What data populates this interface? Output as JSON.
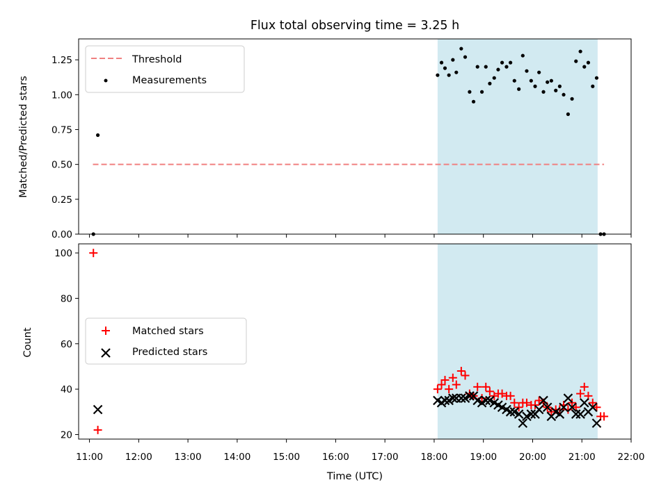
{
  "chart_data": {
    "type": "scatter",
    "title": "Flux total observing time = 3.25 h",
    "xlabel": "Time (UTC)",
    "x_tick_labels": [
      "11:00",
      "12:00",
      "13:00",
      "14:00",
      "15:00",
      "16:00",
      "17:00",
      "18:00",
      "19:00",
      "20:00",
      "21:00",
      "22:00"
    ],
    "xlim_hours": [
      10.78,
      22.0
    ],
    "shaded_interval_hours": [
      18.07,
      21.32
    ],
    "shade_color": "#add8e6",
    "top": {
      "ylabel": "Matched/Predicted stars",
      "ylim": [
        0,
        1.4
      ],
      "y_tick_labels": [
        "0.00",
        "0.25",
        "0.50",
        "0.75",
        "1.00",
        "1.25"
      ],
      "legend": [
        "Threshold",
        "Measurements"
      ],
      "threshold": {
        "name": "Threshold",
        "value": 0.5,
        "x_range": [
          11.07,
          21.45
        ],
        "color": "#f08080"
      },
      "measurements": {
        "name": "Measurements",
        "color": "#000000",
        "x": [
          11.08,
          11.17,
          18.07,
          18.15,
          18.22,
          18.3,
          18.38,
          18.45,
          18.55,
          18.63,
          18.72,
          18.8,
          18.88,
          18.97,
          19.05,
          19.13,
          19.22,
          19.3,
          19.38,
          19.47,
          19.55,
          19.63,
          19.72,
          19.8,
          19.88,
          19.97,
          20.05,
          20.13,
          20.22,
          20.3,
          20.38,
          20.47,
          20.55,
          20.63,
          20.72,
          20.8,
          20.88,
          20.97,
          21.05,
          21.13,
          21.22,
          21.3,
          21.38,
          21.45
        ],
        "y": [
          0.0,
          0.71,
          1.14,
          1.23,
          1.19,
          1.14,
          1.25,
          1.16,
          1.33,
          1.27,
          1.02,
          0.95,
          1.2,
          1.02,
          1.2,
          1.08,
          1.12,
          1.18,
          1.23,
          1.2,
          1.23,
          1.1,
          1.04,
          1.28,
          1.17,
          1.1,
          1.06,
          1.16,
          1.02,
          1.09,
          1.1,
          1.03,
          1.06,
          1.0,
          0.86,
          0.97,
          1.24,
          1.31,
          1.2,
          1.23,
          1.06,
          1.12,
          0.0,
          0.0
        ]
      }
    },
    "bottom": {
      "ylabel": "Count",
      "ylim": [
        18,
        104
      ],
      "y_tick_labels": [
        "20",
        "40",
        "60",
        "80",
        "100"
      ],
      "legend": [
        "Matched stars",
        "Predicted stars"
      ],
      "matched": {
        "name": "Matched stars",
        "color": "#ff0000",
        "x": [
          11.08,
          11.17,
          18.07,
          18.15,
          18.22,
          18.3,
          18.38,
          18.45,
          18.55,
          18.63,
          18.72,
          18.8,
          18.88,
          18.97,
          19.05,
          19.13,
          19.22,
          19.3,
          19.38,
          19.47,
          19.55,
          19.63,
          19.72,
          19.8,
          19.88,
          19.97,
          20.05,
          20.13,
          20.22,
          20.3,
          20.38,
          20.47,
          20.55,
          20.63,
          20.72,
          20.8,
          20.88,
          20.97,
          21.05,
          21.13,
          21.22,
          21.3,
          21.38,
          21.45
        ],
        "y": [
          100,
          22,
          40,
          42,
          44,
          40,
          45,
          42,
          48,
          46,
          38,
          37,
          41,
          36,
          41,
          39,
          37,
          38,
          38,
          37,
          37,
          34,
          32,
          34,
          34,
          33,
          33,
          35,
          34,
          32,
          30,
          31,
          31,
          33,
          31,
          34,
          32,
          38,
          41,
          37,
          34,
          32,
          28,
          28
        ]
      },
      "predicted": {
        "name": "Predicted stars",
        "color": "#000000",
        "x": [
          11.17,
          18.07,
          18.15,
          18.22,
          18.3,
          18.38,
          18.45,
          18.55,
          18.63,
          18.72,
          18.8,
          18.88,
          18.97,
          19.05,
          19.13,
          19.22,
          19.3,
          19.38,
          19.47,
          19.55,
          19.63,
          19.72,
          19.8,
          19.88,
          19.97,
          20.05,
          20.13,
          20.22,
          20.3,
          20.38,
          20.47,
          20.55,
          20.63,
          20.72,
          20.8,
          20.88,
          20.97,
          21.05,
          21.13,
          21.22,
          21.3
        ],
        "y": [
          31,
          35,
          34,
          35,
          35,
          36,
          36,
          36,
          36,
          37,
          37,
          35,
          34,
          35,
          35,
          34,
          33,
          32,
          31,
          30,
          30,
          29,
          25,
          28,
          29,
          29,
          31,
          35,
          32,
          28,
          30,
          29,
          32,
          36,
          32,
          29,
          29,
          34,
          30,
          32,
          25
        ]
      }
    }
  }
}
